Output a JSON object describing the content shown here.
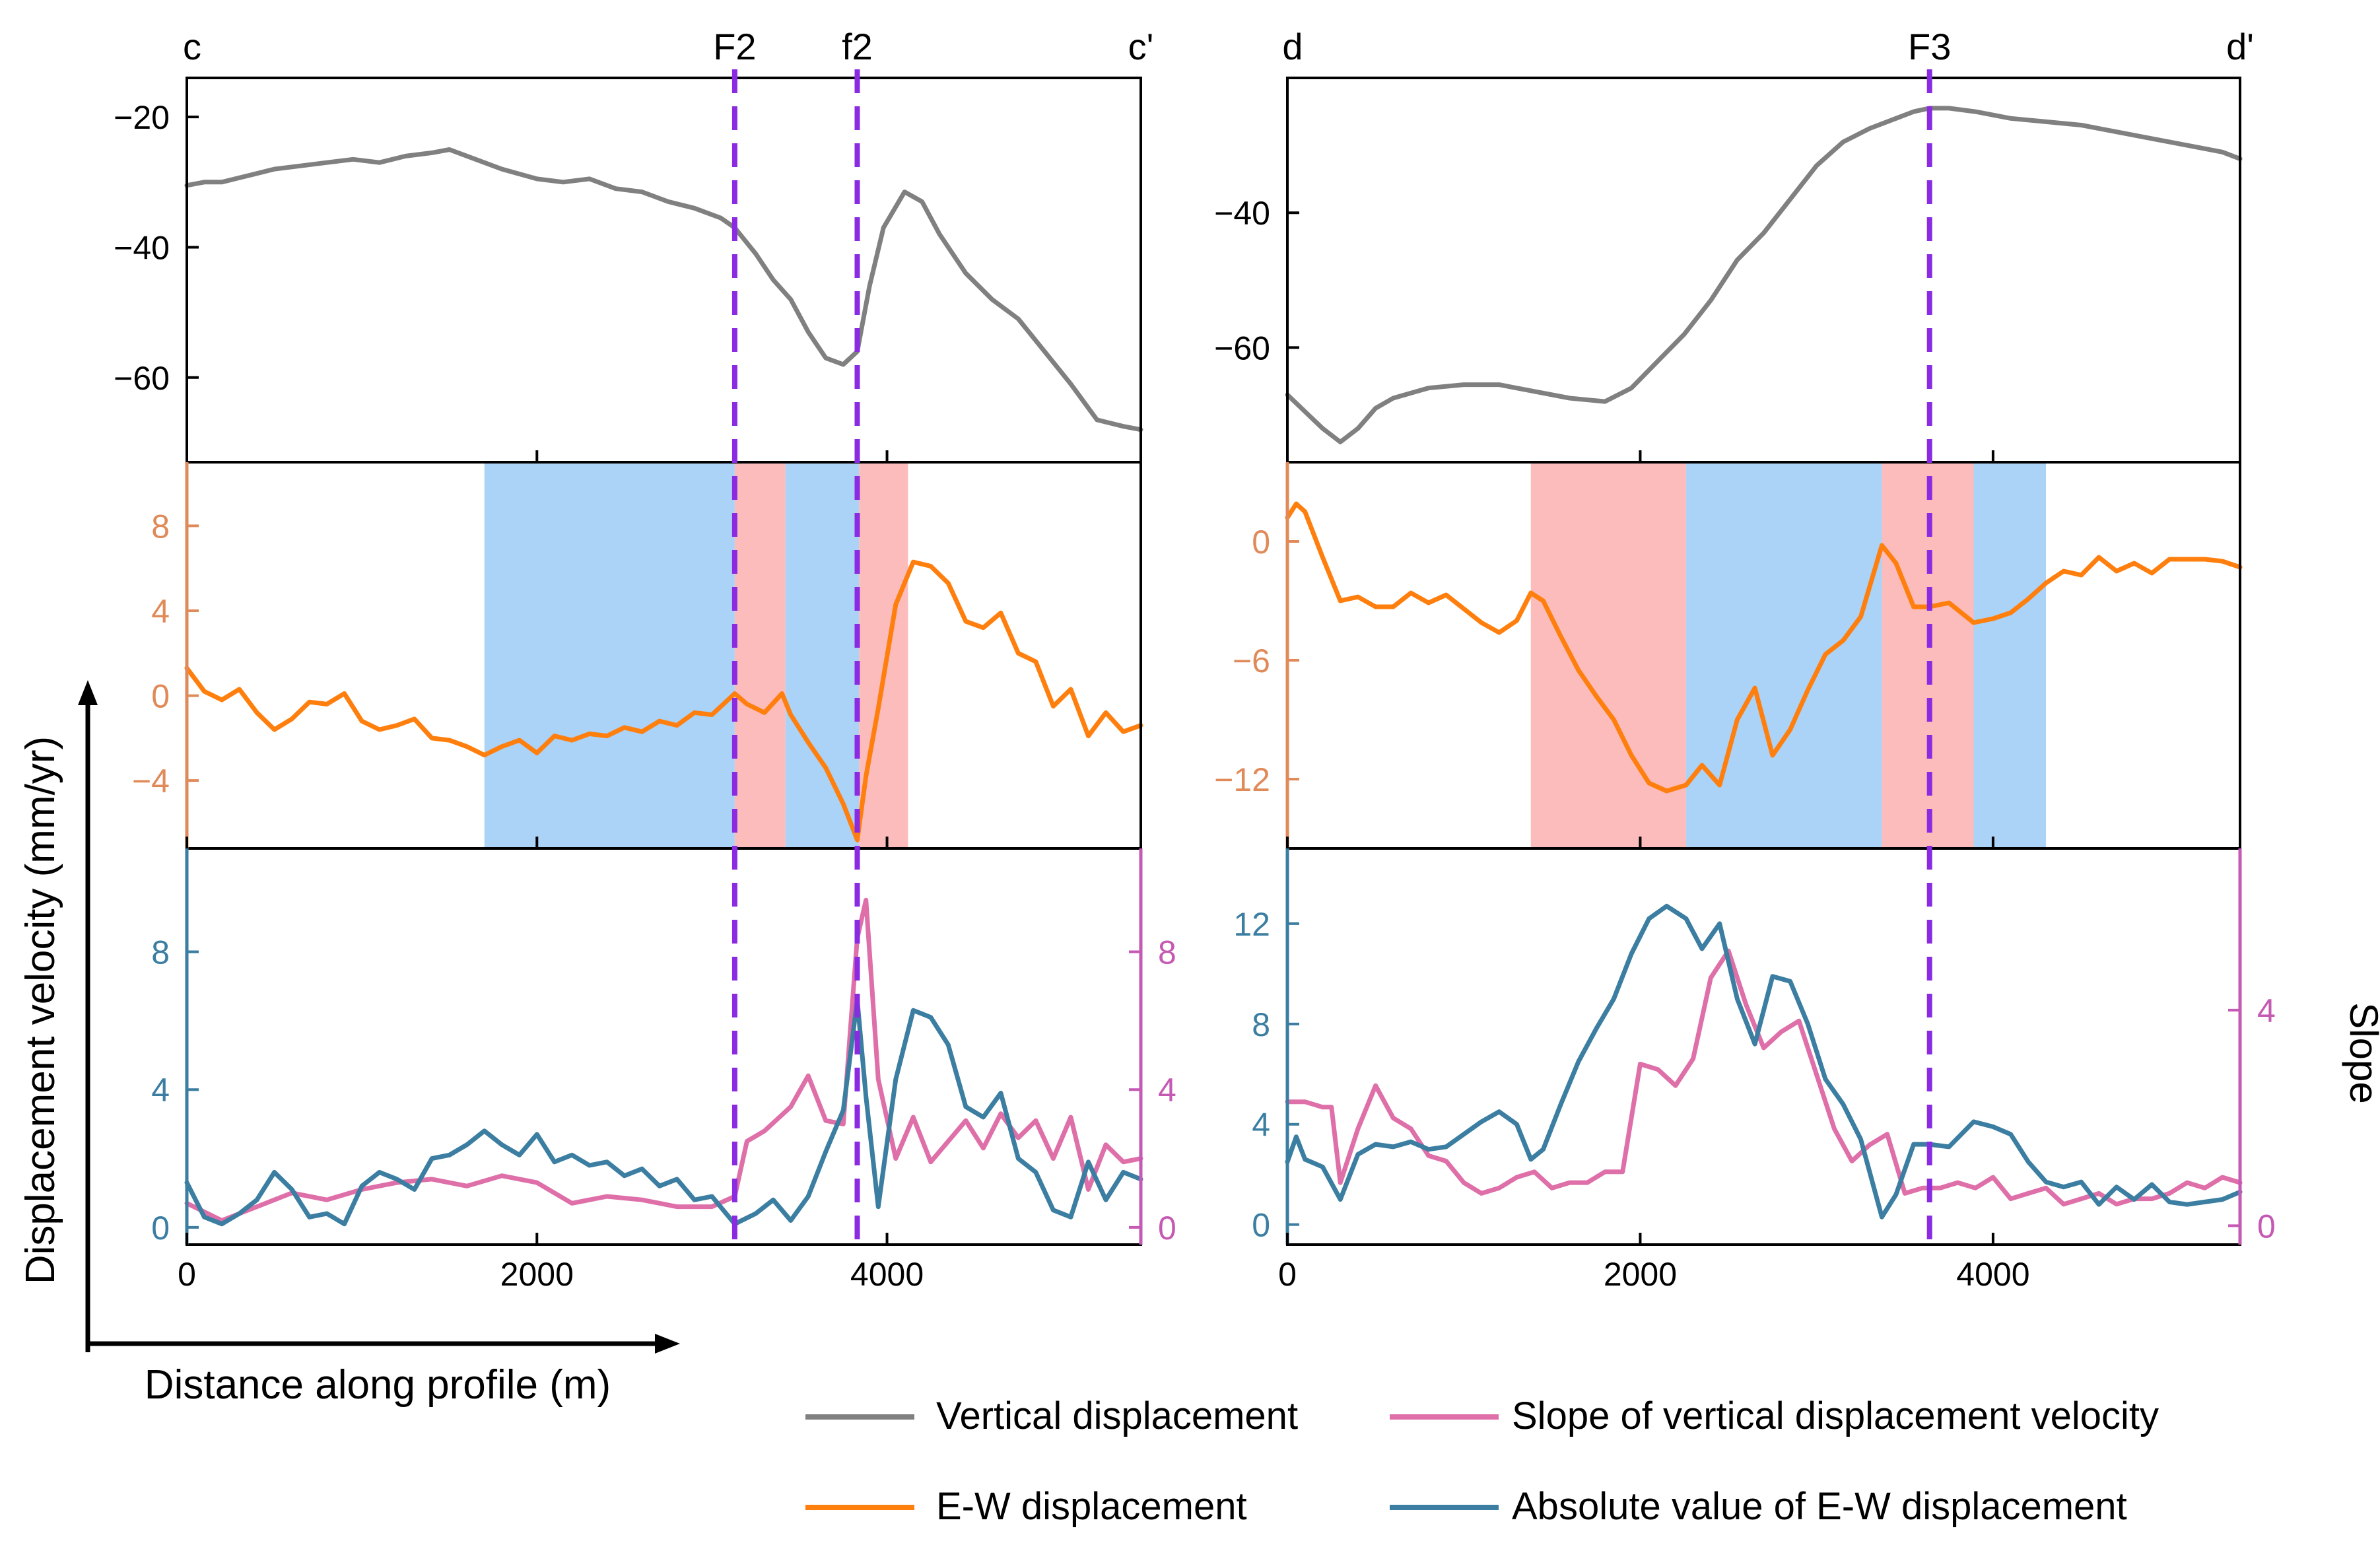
{
  "colors": {
    "vertical": "#808080",
    "ew": "#ff7f0e",
    "abs_ew": "#3b7ea1",
    "slope": "#de6fa8",
    "fault": "#8a2be2",
    "zone_red": "#fcbcbc",
    "zone_blue": "#abd2f7",
    "orange_axis": "#e08a5a",
    "teal_axis": "#3b7ea1",
    "pink_axis": "#c45ab3"
  },
  "labels": {
    "ylabel": "Displacement velocity (mm/yr)",
    "xlabel": "Distance along profile (m)",
    "slope_axis": "Slope"
  },
  "legend": [
    {
      "key": "vertical",
      "label": "Vertical displacement"
    },
    {
      "key": "slope",
      "label": "Slope of vertical displacement velocity"
    },
    {
      "key": "ew",
      "label": "E-W displacement"
    },
    {
      "key": "abs_ew",
      "label": "Absolute value of E-W displacement"
    }
  ],
  "chart_data": [
    {
      "type": "line",
      "panel": "c-c'",
      "profile_start": "c",
      "profile_end": "c'",
      "x_ticks": [
        0,
        2000,
        4000
      ],
      "xlim": [
        0,
        5450
      ],
      "faults": [
        {
          "name": "F2",
          "x": 3130
        },
        {
          "name": "f2",
          "x": 3830
        }
      ],
      "zones": [
        {
          "x0": 1700,
          "x1": 3130,
          "color": "blue"
        },
        {
          "x0": 3130,
          "x1": 3420,
          "color": "red"
        },
        {
          "x0": 3420,
          "x1": 3840,
          "color": "blue"
        },
        {
          "x0": 3840,
          "x1": 4120,
          "color": "red"
        }
      ],
      "vertical": {
        "ylim": [
          -73,
          -14
        ],
        "yticks": [
          -20,
          -40,
          -60
        ],
        "x": [
          0,
          100,
          200,
          350,
          500,
          650,
          800,
          950,
          1100,
          1250,
          1400,
          1500,
          1650,
          1800,
          2000,
          2150,
          2300,
          2450,
          2600,
          2750,
          2900,
          3050,
          3130,
          3250,
          3350,
          3450,
          3550,
          3650,
          3750,
          3830,
          3900,
          3980,
          4100,
          4200,
          4300,
          4450,
          4600,
          4750,
          4900,
          5050,
          5200,
          5350,
          5450
        ],
        "y": [
          -30.5,
          -30,
          -30,
          -29,
          -28,
          -27.5,
          -27,
          -26.5,
          -27,
          -26,
          -25.5,
          -25,
          -26.5,
          -28,
          -29.5,
          -30,
          -29.5,
          -31,
          -31.5,
          -33,
          -34,
          -35.5,
          -37,
          -41,
          -45,
          -48,
          -53,
          -57,
          -58,
          -56,
          -46,
          -37,
          -31.5,
          -33,
          -38,
          -44,
          -48,
          -51,
          -56,
          -61,
          -66.5,
          -67.5,
          -68
        ]
      },
      "ew": {
        "ylim": [
          -7.2,
          11
        ],
        "yticks": [
          8,
          4,
          0,
          -4
        ],
        "x": [
          0,
          100,
          200,
          300,
          400,
          500,
          600,
          700,
          800,
          900,
          1000,
          1100,
          1200,
          1300,
          1400,
          1500,
          1600,
          1700,
          1800,
          1900,
          2000,
          2100,
          2200,
          2300,
          2400,
          2500,
          2600,
          2700,
          2800,
          2900,
          3000,
          3130,
          3200,
          3300,
          3400,
          3450,
          3550,
          3650,
          3750,
          3830,
          3880,
          3950,
          4050,
          4150,
          4250,
          4350,
          4450,
          4550,
          4650,
          4750,
          4850,
          4950,
          5050,
          5150,
          5250,
          5350,
          5450
        ],
        "y": [
          1.3,
          0.2,
          -0.2,
          0.3,
          -0.8,
          -1.6,
          -1.1,
          -0.3,
          -0.4,
          0.1,
          -1.2,
          -1.6,
          -1.4,
          -1.1,
          -2.0,
          -2.1,
          -2.4,
          -2.8,
          -2.4,
          -2.1,
          -2.7,
          -1.9,
          -2.1,
          -1.8,
          -1.9,
          -1.5,
          -1.7,
          -1.2,
          -1.4,
          -0.8,
          -0.9,
          0.1,
          -0.4,
          -0.8,
          0.1,
          -0.9,
          -2.2,
          -3.4,
          -5.1,
          -6.8,
          -3.8,
          -0.6,
          4.3,
          6.3,
          6.1,
          5.3,
          3.5,
          3.2,
          3.9,
          2.0,
          1.6,
          -0.5,
          0.3,
          -1.9,
          -0.8,
          -1.7,
          -1.4
        ]
      },
      "abs_ew": {
        "ylim": [
          -0.5,
          11
        ],
        "yticks": [
          8,
          4,
          0
        ],
        "x": [
          0,
          100,
          200,
          300,
          400,
          500,
          600,
          700,
          800,
          900,
          1000,
          1100,
          1200,
          1300,
          1400,
          1500,
          1600,
          1700,
          1800,
          1900,
          2000,
          2100,
          2200,
          2300,
          2400,
          2500,
          2600,
          2700,
          2800,
          2900,
          3000,
          3130,
          3250,
          3350,
          3450,
          3550,
          3650,
          3750,
          3830,
          3880,
          3950,
          4050,
          4150,
          4250,
          4350,
          4450,
          4550,
          4650,
          4750,
          4850,
          4950,
          5050,
          5150,
          5250,
          5350,
          5450
        ],
        "y": [
          1.3,
          0.3,
          0.1,
          0.4,
          0.8,
          1.6,
          1.1,
          0.3,
          0.4,
          0.1,
          1.2,
          1.6,
          1.4,
          1.1,
          2.0,
          2.1,
          2.4,
          2.8,
          2.4,
          2.1,
          2.7,
          1.9,
          2.1,
          1.8,
          1.9,
          1.5,
          1.7,
          1.2,
          1.4,
          0.8,
          0.9,
          0.1,
          0.4,
          0.8,
          0.2,
          0.9,
          2.2,
          3.4,
          6.6,
          3.8,
          0.6,
          4.3,
          6.3,
          6.1,
          5.3,
          3.5,
          3.2,
          3.9,
          2.0,
          1.6,
          0.5,
          0.3,
          1.9,
          0.8,
          1.6,
          1.4
        ]
      },
      "slope": {
        "ylim": [
          -0.5,
          11
        ],
        "yticks": [
          8,
          4,
          0
        ],
        "x": [
          0,
          200,
          400,
          600,
          800,
          1000,
          1200,
          1400,
          1600,
          1800,
          2000,
          2200,
          2400,
          2600,
          2800,
          3000,
          3130,
          3200,
          3300,
          3450,
          3550,
          3650,
          3750,
          3830,
          3880,
          3950,
          4050,
          4150,
          4250,
          4350,
          4450,
          4550,
          4650,
          4750,
          4850,
          4950,
          5050,
          5150,
          5250,
          5350,
          5450
        ],
        "y": [
          0.7,
          0.2,
          0.6,
          1.0,
          0.8,
          1.1,
          1.3,
          1.4,
          1.2,
          1.5,
          1.3,
          0.7,
          0.9,
          0.8,
          0.6,
          0.6,
          0.9,
          2.5,
          2.8,
          3.5,
          4.4,
          3.1,
          3.0,
          8.4,
          9.5,
          4.3,
          2.0,
          3.2,
          1.9,
          2.5,
          3.1,
          2.3,
          3.3,
          2.6,
          3.1,
          2.0,
          3.2,
          1.1,
          2.4,
          1.9,
          2.0
        ]
      }
    },
    {
      "type": "line",
      "panel": "d-d'",
      "profile_start": "d",
      "profile_end": "d'",
      "x_ticks": [
        0,
        2000,
        4000
      ],
      "xlim": [
        0,
        5400
      ],
      "faults": [
        {
          "name": "F3",
          "x": 3640
        }
      ],
      "zones": [
        {
          "x0": 1380,
          "x1": 2260,
          "color": "red"
        },
        {
          "x0": 2260,
          "x1": 3370,
          "color": "blue"
        },
        {
          "x0": 3370,
          "x1": 3890,
          "color": "red"
        },
        {
          "x0": 3890,
          "x1": 4300,
          "color": "blue"
        }
      ],
      "vertical": {
        "ylim": [
          -77,
          -20
        ],
        "yticks": [
          -40,
          -60
        ],
        "x": [
          0,
          100,
          200,
          300,
          400,
          500,
          600,
          800,
          1000,
          1200,
          1400,
          1600,
          1800,
          1950,
          2100,
          2250,
          2400,
          2550,
          2700,
          2850,
          3000,
          3150,
          3300,
          3450,
          3550,
          3640,
          3750,
          3900,
          4100,
          4300,
          4500,
          4700,
          4900,
          5100,
          5300,
          5400
        ],
        "y": [
          -67,
          -69.5,
          -72,
          -74,
          -72,
          -69,
          -67.5,
          -66,
          -65.5,
          -65.5,
          -66.5,
          -67.5,
          -68,
          -66,
          -62,
          -58,
          -53,
          -47,
          -43,
          -38,
          -33,
          -29.5,
          -27.5,
          -26,
          -25,
          -24.5,
          -24.5,
          -25,
          -26,
          -26.5,
          -27,
          -28,
          -29,
          -30,
          -31,
          -32
        ]
      },
      "ew": {
        "ylim": [
          -15.5,
          4
        ],
        "yticks": [
          0,
          -6,
          -12
        ],
        "x": [
          0,
          50,
          100,
          200,
          300,
          400,
          500,
          600,
          700,
          800,
          900,
          1000,
          1100,
          1200,
          1300,
          1380,
          1450,
          1550,
          1650,
          1750,
          1850,
          1950,
          2050,
          2150,
          2260,
          2350,
          2450,
          2550,
          2650,
          2750,
          2850,
          2950,
          3050,
          3150,
          3250,
          3370,
          3450,
          3550,
          3640,
          3750,
          3890,
          4000,
          4100,
          4200,
          4300,
          4400,
          4500,
          4600,
          4700,
          4800,
          4900,
          5000,
          5100,
          5200,
          5300,
          5400
        ],
        "y": [
          1.2,
          1.9,
          1.5,
          -0.8,
          -3.0,
          -2.8,
          -3.3,
          -3.3,
          -2.6,
          -3.1,
          -2.7,
          -3.4,
          -4.1,
          -4.6,
          -4.0,
          -2.6,
          -3.0,
          -4.8,
          -6.5,
          -7.8,
          -9.0,
          -10.8,
          -12.2,
          -12.6,
          -12.3,
          -11.3,
          -12.3,
          -9.0,
          -7.4,
          -10.8,
          -9.5,
          -7.5,
          -5.7,
          -5.0,
          -3.8,
          -0.2,
          -1.1,
          -3.3,
          -3.3,
          -3.1,
          -4.1,
          -3.9,
          -3.6,
          -2.9,
          -2.1,
          -1.5,
          -1.7,
          -0.8,
          -1.5,
          -1.1,
          -1.6,
          -0.9,
          -0.9,
          -0.9,
          -1.0,
          -1.3
        ]
      },
      "abs_ew": {
        "ylim": [
          -0.8,
          15
        ],
        "yticks": [
          12,
          8,
          4,
          0
        ],
        "x": [
          0,
          50,
          100,
          200,
          300,
          400,
          500,
          600,
          700,
          800,
          900,
          1000,
          1100,
          1200,
          1300,
          1380,
          1450,
          1550,
          1650,
          1750,
          1850,
          1950,
          2050,
          2150,
          2260,
          2350,
          2450,
          2550,
          2650,
          2750,
          2850,
          2950,
          3050,
          3150,
          3250,
          3370,
          3450,
          3550,
          3640,
          3750,
          3890,
          4000,
          4100,
          4200,
          4300,
          4400,
          4500,
          4600,
          4700,
          4800,
          4900,
          5000,
          5100,
          5200,
          5300,
          5400
        ],
        "y": [
          2.5,
          3.5,
          2.6,
          2.3,
          1.0,
          2.8,
          3.2,
          3.1,
          3.3,
          3.0,
          3.1,
          3.6,
          4.1,
          4.5,
          4.0,
          2.6,
          3.0,
          4.8,
          6.5,
          7.8,
          9.0,
          10.8,
          12.2,
          12.7,
          12.2,
          11.0,
          12.0,
          9.0,
          7.2,
          9.9,
          9.7,
          8.0,
          5.8,
          4.8,
          3.4,
          0.3,
          1.2,
          3.2,
          3.2,
          3.1,
          4.1,
          3.9,
          3.6,
          2.5,
          1.7,
          1.5,
          1.7,
          0.8,
          1.5,
          1.0,
          1.6,
          0.9,
          0.8,
          0.9,
          1.0,
          1.3
        ]
      },
      "slope": {
        "ylim": [
          -0.35,
          7
        ],
        "yticks": [
          4,
          0
        ],
        "x": [
          0,
          100,
          200,
          250,
          300,
          400,
          500,
          600,
          700,
          800,
          900,
          1000,
          1100,
          1200,
          1300,
          1400,
          1500,
          1600,
          1700,
          1800,
          1900,
          2000,
          2100,
          2200,
          2300,
          2400,
          2500,
          2600,
          2700,
          2800,
          2900,
          3000,
          3100,
          3200,
          3300,
          3400,
          3500,
          3600,
          3700,
          3800,
          3900,
          4000,
          4100,
          4200,
          4300,
          4400,
          4500,
          4600,
          4700,
          4800,
          4900,
          5000,
          5100,
          5200,
          5300,
          5400
        ],
        "y": [
          2.3,
          2.3,
          2.2,
          2.2,
          0.8,
          1.8,
          2.6,
          2.0,
          1.8,
          1.3,
          1.2,
          0.8,
          0.6,
          0.7,
          0.9,
          1.0,
          0.7,
          0.8,
          0.8,
          1.0,
          1.0,
          3.0,
          2.9,
          2.6,
          3.1,
          4.6,
          5.1,
          4.1,
          3.3,
          3.6,
          3.8,
          2.8,
          1.8,
          1.2,
          1.5,
          1.7,
          0.6,
          0.7,
          0.7,
          0.8,
          0.7,
          0.9,
          0.5,
          0.6,
          0.7,
          0.4,
          0.5,
          0.6,
          0.4,
          0.5,
          0.5,
          0.6,
          0.8,
          0.7,
          0.9,
          0.8
        ]
      }
    }
  ]
}
